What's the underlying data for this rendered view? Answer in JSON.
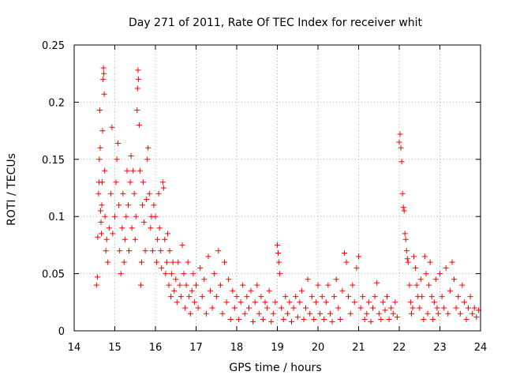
{
  "chart_data": {
    "type": "scatter",
    "title": "Day 271 of 2011, Rate Of TEC Index for receiver whit",
    "xlabel": "GPS time / hours",
    "ylabel": "ROTI / TECUs",
    "xlim": [
      14,
      24
    ],
    "ylim": [
      0,
      0.25
    ],
    "x_ticks": [
      "14",
      "15",
      "16",
      "17",
      "18",
      "19",
      "20",
      "21",
      "22",
      "23",
      "24"
    ],
    "y_ticks": [
      "0",
      "0.05",
      "0.1",
      "0.15",
      "0.2",
      "0.25"
    ],
    "grid": true,
    "grid_style": "dotted",
    "marker": "plus",
    "marker_color": "#ff0000",
    "series": [
      {
        "points": [
          [
            14.55,
            0.04
          ],
          [
            14.57,
            0.047
          ],
          [
            14.58,
            0.082
          ],
          [
            14.6,
            0.12
          ],
          [
            14.61,
            0.13
          ],
          [
            14.62,
            0.15
          ],
          [
            14.63,
            0.193
          ],
          [
            14.64,
            0.16
          ],
          [
            14.65,
            0.105
          ],
          [
            14.66,
            0.095
          ],
          [
            14.67,
            0.085
          ],
          [
            14.68,
            0.11
          ],
          [
            14.69,
            0.13
          ],
          [
            14.7,
            0.175
          ],
          [
            14.71,
            0.22
          ],
          [
            14.72,
            0.23
          ],
          [
            14.73,
            0.225
          ],
          [
            14.74,
            0.207
          ],
          [
            14.75,
            0.14
          ],
          [
            14.76,
            0.1
          ],
          [
            14.78,
            0.07
          ],
          [
            14.8,
            0.08
          ],
          [
            14.83,
            0.06
          ],
          [
            14.86,
            0.09
          ],
          [
            14.9,
            0.12
          ],
          [
            14.93,
            0.178
          ],
          [
            14.95,
            0.085
          ],
          [
            15.0,
            0.1
          ],
          [
            15.03,
            0.13
          ],
          [
            15.05,
            0.15
          ],
          [
            15.08,
            0.164
          ],
          [
            15.1,
            0.11
          ],
          [
            15.12,
            0.07
          ],
          [
            15.15,
            0.05
          ],
          [
            15.18,
            0.09
          ],
          [
            15.2,
            0.12
          ],
          [
            15.23,
            0.06
          ],
          [
            15.25,
            0.08
          ],
          [
            15.28,
            0.1
          ],
          [
            15.3,
            0.14
          ],
          [
            15.33,
            0.11
          ],
          [
            15.35,
            0.07
          ],
          [
            15.38,
            0.13
          ],
          [
            15.4,
            0.153
          ],
          [
            15.42,
            0.09
          ],
          [
            15.45,
            0.14
          ],
          [
            15.48,
            0.12
          ],
          [
            15.5,
            0.08
          ],
          [
            15.52,
            0.1
          ],
          [
            15.55,
            0.193
          ],
          [
            15.56,
            0.212
          ],
          [
            15.57,
            0.228
          ],
          [
            15.58,
            0.22
          ],
          [
            15.6,
            0.18
          ],
          [
            15.62,
            0.14
          ],
          [
            15.64,
            0.04
          ],
          [
            15.66,
            0.06
          ],
          [
            15.68,
            0.11
          ],
          [
            15.7,
            0.13
          ],
          [
            15.72,
            0.095
          ],
          [
            15.75,
            0.07
          ],
          [
            15.78,
            0.115
          ],
          [
            15.8,
            0.15
          ],
          [
            15.82,
            0.16
          ],
          [
            15.85,
            0.12
          ],
          [
            15.88,
            0.09
          ],
          [
            15.9,
            0.1
          ],
          [
            15.93,
            0.07
          ],
          [
            15.96,
            0.11
          ],
          [
            16.0,
            0.1
          ],
          [
            16.03,
            0.06
          ],
          [
            16.05,
            0.08
          ],
          [
            16.08,
            0.12
          ],
          [
            16.1,
            0.09
          ],
          [
            16.13,
            0.07
          ],
          [
            16.15,
            0.055
          ],
          [
            16.18,
            0.13
          ],
          [
            16.2,
            0.125
          ],
          [
            16.23,
            0.08
          ],
          [
            16.25,
            0.05
          ],
          [
            16.28,
            0.06
          ],
          [
            16.3,
            0.085
          ],
          [
            16.33,
            0.04
          ],
          [
            16.35,
            0.07
          ],
          [
            16.38,
            0.03
          ],
          [
            16.4,
            0.05
          ],
          [
            16.43,
            0.06
          ],
          [
            16.46,
            0.035
          ],
          [
            16.5,
            0.045
          ],
          [
            16.53,
            0.025
          ],
          [
            16.56,
            0.06
          ],
          [
            16.6,
            0.04
          ],
          [
            16.63,
            0.03
          ],
          [
            16.66,
            0.075
          ],
          [
            16.7,
            0.05
          ],
          [
            16.73,
            0.02
          ],
          [
            16.76,
            0.04
          ],
          [
            16.8,
            0.06
          ],
          [
            16.83,
            0.03
          ],
          [
            16.86,
            0.015
          ],
          [
            16.9,
            0.035
          ],
          [
            16.93,
            0.05
          ],
          [
            16.96,
            0.025
          ],
          [
            17.0,
            0.04
          ],
          [
            17.05,
            0.02
          ],
          [
            17.1,
            0.055
          ],
          [
            17.15,
            0.03
          ],
          [
            17.2,
            0.045
          ],
          [
            17.25,
            0.015
          ],
          [
            17.3,
            0.065
          ],
          [
            17.35,
            0.035
          ],
          [
            17.4,
            0.02
          ],
          [
            17.45,
            0.05
          ],
          [
            17.5,
            0.03
          ],
          [
            17.55,
            0.07
          ],
          [
            17.6,
            0.04
          ],
          [
            17.65,
            0.015
          ],
          [
            17.7,
            0.06
          ],
          [
            17.75,
            0.025
          ],
          [
            17.8,
            0.045
          ],
          [
            17.85,
            0.01
          ],
          [
            17.9,
            0.035
          ],
          [
            17.95,
            0.02
          ],
          [
            18.0,
            0.03
          ],
          [
            18.05,
            0.01
          ],
          [
            18.1,
            0.025
          ],
          [
            18.15,
            0.04
          ],
          [
            18.2,
            0.015
          ],
          [
            18.25,
            0.03
          ],
          [
            18.3,
            0.02
          ],
          [
            18.35,
            0.035
          ],
          [
            18.4,
            0.008
          ],
          [
            18.45,
            0.025
          ],
          [
            18.5,
            0.04
          ],
          [
            18.55,
            0.015
          ],
          [
            18.6,
            0.03
          ],
          [
            18.65,
            0.01
          ],
          [
            18.7,
            0.025
          ],
          [
            18.75,
            0.02
          ],
          [
            18.8,
            0.035
          ],
          [
            18.85,
            0.008
          ],
          [
            18.9,
            0.015
          ],
          [
            18.95,
            0.025
          ],
          [
            19.0,
            0.075
          ],
          [
            19.02,
            0.068
          ],
          [
            19.04,
            0.06
          ],
          [
            19.06,
            0.05
          ],
          [
            19.1,
            0.02
          ],
          [
            19.15,
            0.01
          ],
          [
            19.2,
            0.03
          ],
          [
            19.25,
            0.015
          ],
          [
            19.3,
            0.025
          ],
          [
            19.35,
            0.008
          ],
          [
            19.4,
            0.02
          ],
          [
            19.45,
            0.03
          ],
          [
            19.5,
            0.012
          ],
          [
            19.55,
            0.025
          ],
          [
            19.6,
            0.035
          ],
          [
            19.65,
            0.01
          ],
          [
            19.7,
            0.02
          ],
          [
            19.75,
            0.045
          ],
          [
            19.8,
            0.015
          ],
          [
            19.85,
            0.03
          ],
          [
            19.9,
            0.01
          ],
          [
            19.95,
            0.025
          ],
          [
            20.0,
            0.04
          ],
          [
            20.05,
            0.015
          ],
          [
            20.1,
            0.03
          ],
          [
            20.15,
            0.01
          ],
          [
            20.2,
            0.025
          ],
          [
            20.25,
            0.04
          ],
          [
            20.3,
            0.015
          ],
          [
            20.35,
            0.008
          ],
          [
            20.4,
            0.03
          ],
          [
            20.45,
            0.045
          ],
          [
            20.5,
            0.02
          ],
          [
            20.55,
            0.01
          ],
          [
            20.6,
            0.035
          ],
          [
            20.65,
            0.068
          ],
          [
            20.7,
            0.06
          ],
          [
            20.75,
            0.03
          ],
          [
            20.8,
            0.015
          ],
          [
            20.85,
            0.04
          ],
          [
            20.9,
            0.025
          ],
          [
            20.95,
            0.055
          ],
          [
            21.0,
            0.065
          ],
          [
            21.05,
            0.02
          ],
          [
            21.1,
            0.03
          ],
          [
            21.15,
            0.01
          ],
          [
            21.2,
            0.015
          ],
          [
            21.25,
            0.025
          ],
          [
            21.3,
            0.008
          ],
          [
            21.35,
            0.02
          ],
          [
            21.4,
            0.03
          ],
          [
            21.45,
            0.042
          ],
          [
            21.5,
            0.015
          ],
          [
            21.55,
            0.01
          ],
          [
            21.6,
            0.025
          ],
          [
            21.65,
            0.018
          ],
          [
            21.7,
            0.03
          ],
          [
            21.75,
            0.01
          ],
          [
            21.8,
            0.02
          ],
          [
            21.85,
            0.015
          ],
          [
            21.9,
            0.025
          ],
          [
            21.95,
            0.012
          ],
          [
            22.0,
            0.165
          ],
          [
            22.02,
            0.172
          ],
          [
            22.04,
            0.16
          ],
          [
            22.06,
            0.148
          ],
          [
            22.08,
            0.12
          ],
          [
            22.1,
            0.108
          ],
          [
            22.12,
            0.105
          ],
          [
            22.14,
            0.085
          ],
          [
            22.16,
            0.08
          ],
          [
            22.18,
            0.07
          ],
          [
            22.2,
            0.063
          ],
          [
            22.22,
            0.06
          ],
          [
            22.25,
            0.04
          ],
          [
            22.28,
            0.025
          ],
          [
            22.3,
            0.015
          ],
          [
            22.33,
            0.02
          ],
          [
            22.36,
            0.065
          ],
          [
            22.4,
            0.055
          ],
          [
            22.43,
            0.04
          ],
          [
            22.46,
            0.03
          ],
          [
            22.5,
            0.02
          ],
          [
            22.53,
            0.045
          ],
          [
            22.56,
            0.03
          ],
          [
            22.6,
            0.01
          ],
          [
            22.63,
            0.065
          ],
          [
            22.66,
            0.05
          ],
          [
            22.7,
            0.015
          ],
          [
            22.73,
            0.04
          ],
          [
            22.76,
            0.06
          ],
          [
            22.8,
            0.03
          ],
          [
            22.83,
            0.01
          ],
          [
            22.86,
            0.025
          ],
          [
            22.9,
            0.045
          ],
          [
            22.93,
            0.02
          ],
          [
            22.96,
            0.015
          ],
          [
            23.0,
            0.05
          ],
          [
            23.05,
            0.03
          ],
          [
            23.1,
            0.02
          ],
          [
            23.15,
            0.055
          ],
          [
            23.2,
            0.015
          ],
          [
            23.25,
            0.035
          ],
          [
            23.3,
            0.06
          ],
          [
            23.35,
            0.045
          ],
          [
            23.4,
            0.02
          ],
          [
            23.45,
            0.03
          ],
          [
            23.5,
            0.015
          ],
          [
            23.55,
            0.04
          ],
          [
            23.6,
            0.025
          ],
          [
            23.65,
            0.01
          ],
          [
            23.7,
            0.02
          ],
          [
            23.75,
            0.03
          ],
          [
            23.8,
            0.015
          ],
          [
            23.85,
            0.02
          ],
          [
            23.9,
            0.012
          ],
          [
            23.95,
            0.018
          ]
        ]
      }
    ]
  }
}
